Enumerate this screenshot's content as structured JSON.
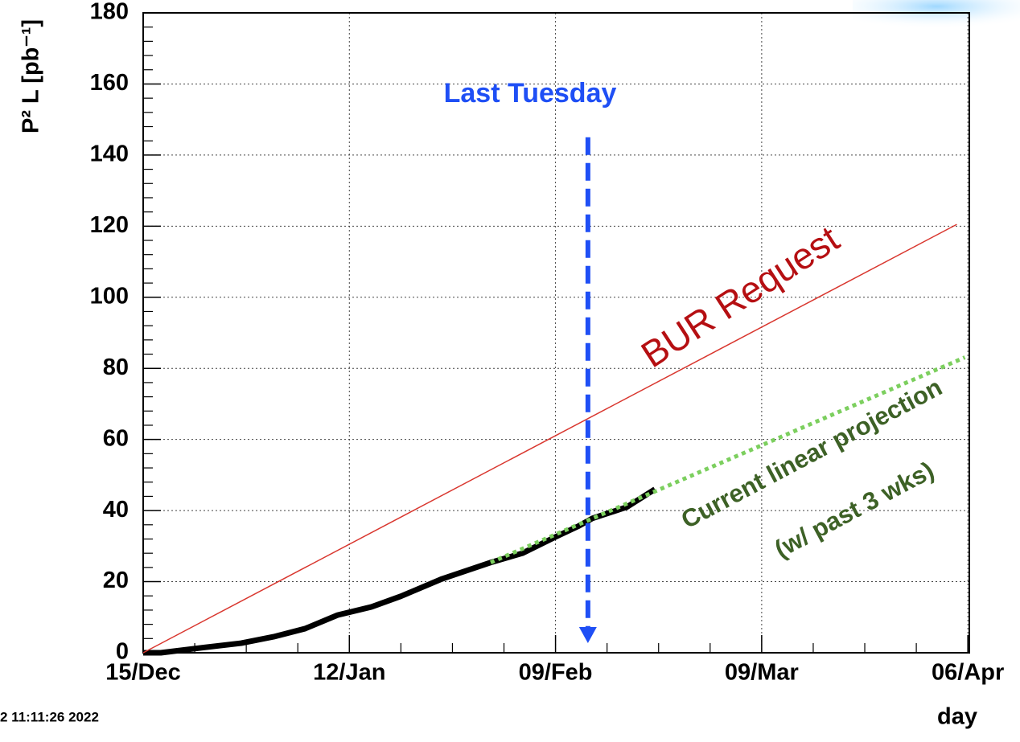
{
  "chart_data": {
    "type": "line",
    "y_label": "P² L [pb⁻¹]",
    "x_label": "day",
    "footer": "2 11:11:26 2022",
    "xlim": [
      0,
      112.2
    ],
    "xticks": [
      {
        "value": 0,
        "label": "15/Dec"
      },
      {
        "value": 28,
        "label": "12/Jan"
      },
      {
        "value": 56,
        "label": "09/Feb"
      },
      {
        "value": 84,
        "label": "09/Mar"
      },
      {
        "value": 112,
        "label": "06/Apr"
      }
    ],
    "ylim": [
      0,
      180
    ],
    "yticks": [
      0,
      20,
      40,
      60,
      80,
      100,
      120,
      140,
      160,
      180
    ],
    "grid": true,
    "series": [
      {
        "color": "#000000",
        "width": 7,
        "line_style": "solid",
        "x": [
          0,
          2.4,
          7.9,
          13.3,
          17.7,
          22,
          26.4,
          31,
          35,
          40.6,
          47.2,
          51.5,
          56,
          59,
          61,
          65.7,
          69.5
        ],
        "values": [
          0,
          0,
          1.4,
          2.7,
          4.5,
          6.8,
          10.6,
          12.9,
          15.9,
          20.8,
          25.4,
          28,
          32.6,
          35.5,
          37.8,
          41,
          46
        ]
      },
      {
        "color": "#d9372f",
        "width": 1.5,
        "line_style": "solid",
        "x": [
          0,
          110.5
        ],
        "values": [
          0,
          120.5
        ]
      },
      {
        "color": "#7ccf5e",
        "width": 5,
        "line_style": "dotted",
        "x": [
          47.2,
          111.6
        ],
        "values": [
          25.4,
          83.1
        ]
      }
    ],
    "annotations": [
      {
        "text": "Last Tuesday",
        "color": "#1f4ff5",
        "arrow_x": 60.4,
        "arrow_y": [
          145,
          0
        ]
      },
      {
        "text": "BUR Request",
        "color": "#b50f12"
      },
      {
        "text": "Current linear projection",
        "color": "#3d6126"
      },
      {
        "text": "(w/ past 3 wks)",
        "color": "#3d6126"
      }
    ]
  }
}
